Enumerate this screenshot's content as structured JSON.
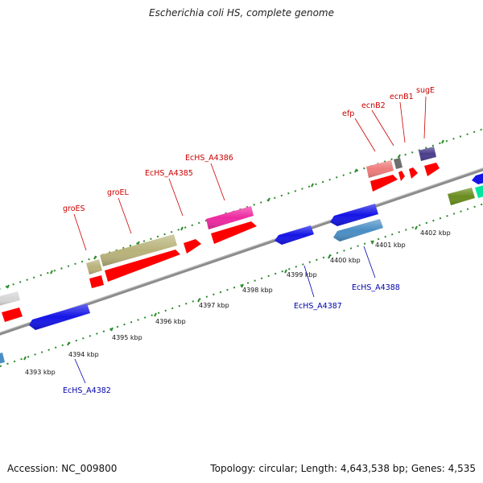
{
  "title": "Escherichia coli HS, complete genome",
  "footer": {
    "accession": "Accession: NC_009800",
    "summary": "Topology: circular; Length: 4,643,538 bp; Genes: 4,535"
  },
  "colors": {
    "backbone": "#8c8c8c",
    "tick": "#2d8a2d",
    "forward_label": "#cc0000",
    "reverse_label": "#0000aa"
  },
  "kbp_labels": [
    "4393 kbp",
    "4394 kbp",
    "4395 kbp",
    "4396 kbp",
    "4397 kbp",
    "4398 kbp",
    "4399 kbp",
    "4400 kbp",
    "4401 kbp",
    "4402 kbp"
  ],
  "forward_labels": [
    "groES",
    "groEL",
    "EcHS_A4385",
    "EcHS_A4386",
    "efp",
    "ecnB2",
    "ecnB1",
    "sugE"
  ],
  "reverse_labels": [
    "EcHS_A4382",
    "EcHS_A4387",
    "EcHS_A4388"
  ]
}
